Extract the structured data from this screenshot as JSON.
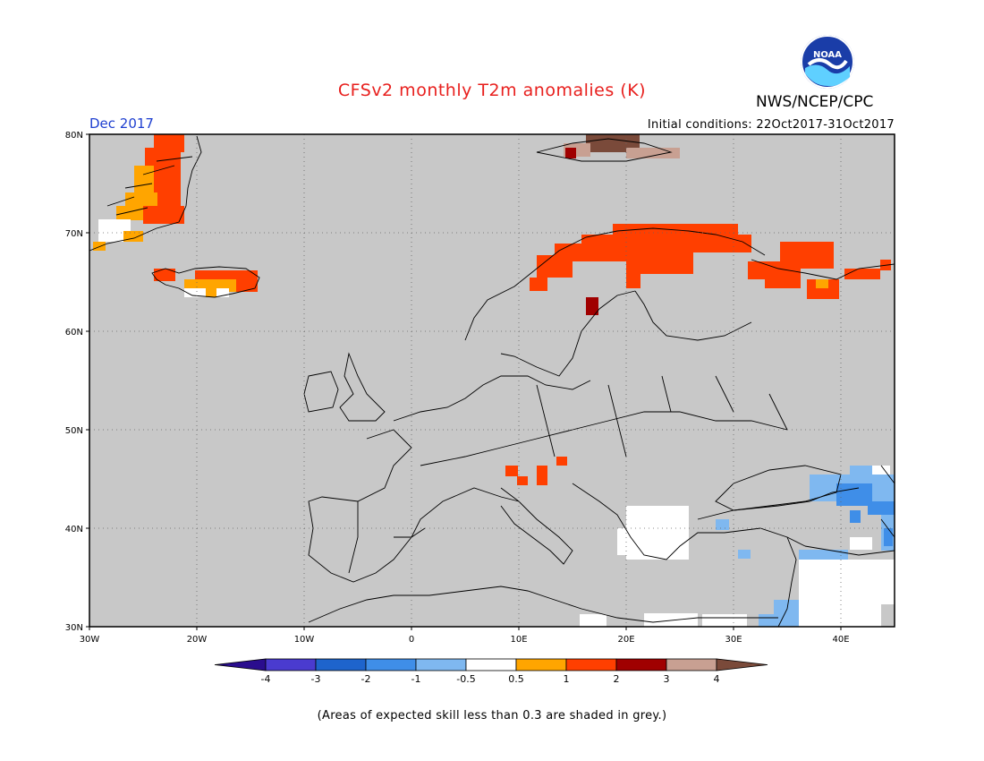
{
  "header": {
    "title": "CFSv2 monthly T2m anomalies (K)",
    "agency": "NWS/NCEP/CPC",
    "logo_text": "NOAA",
    "month": "Dec 2017",
    "initial_conditions": "Initial conditions: 22Oct2017-31Oct2017"
  },
  "map": {
    "lat_range": [
      30,
      80
    ],
    "lon_range": [
      -30,
      45
    ],
    "lat_labels": [
      "80N",
      "70N",
      "60N",
      "50N",
      "40N",
      "30N"
    ],
    "lon_labels": [
      "30W",
      "20W",
      "10W",
      "0",
      "10E",
      "20E",
      "30E",
      "40E"
    ],
    "no_skill_color": "#c8c8c8"
  },
  "colorbar": {
    "tick_labels": [
      "-4",
      "-3",
      "-2",
      "-1",
      "-0.5",
      "0.5",
      "1",
      "2",
      "3",
      "4"
    ],
    "colors": [
      "#2a0d8e",
      "#4a3bcf",
      "#1e64cc",
      "#3f8ee8",
      "#7fb8f0",
      "#ffffff",
      "#ffa500",
      "#ff3f00",
      "#a00000",
      "#c8a092",
      "#7a4a3a"
    ]
  },
  "footnote": "(Areas of expected skill less than 0.3 are shaded in grey.)"
}
